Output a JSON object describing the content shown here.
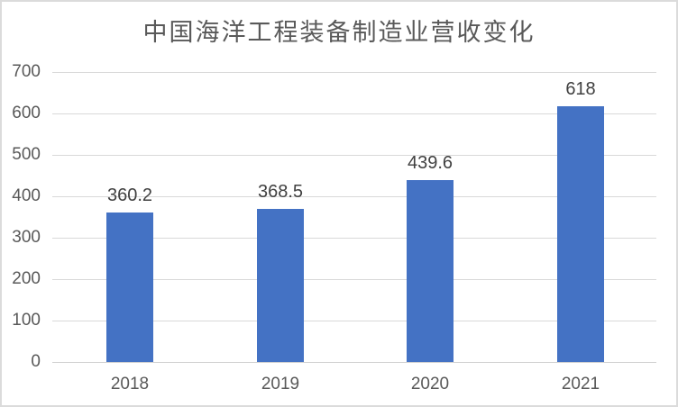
{
  "chart_data": {
    "type": "bar",
    "title": "中国海洋工程装备制造业营收变化",
    "categories": [
      "2018",
      "2019",
      "2020",
      "2021"
    ],
    "values": [
      360.2,
      368.5,
      439.6,
      618
    ],
    "value_labels": [
      "360.2",
      "368.5",
      "439.6",
      "618"
    ],
    "xlabel": "",
    "ylabel": "",
    "ylim": [
      0,
      700
    ],
    "yticks": [
      0,
      100,
      200,
      300,
      400,
      500,
      600,
      700
    ],
    "grid": true,
    "legend": false,
    "colors": {
      "bar": "#4472C4",
      "gridline": "#D9D9D9",
      "axis_line": "#D0D0D0",
      "axis_label": "#595959",
      "data_label": "#404040",
      "title": "#595959",
      "background": "#FFFFFF",
      "border": "#DBDBDB"
    }
  }
}
